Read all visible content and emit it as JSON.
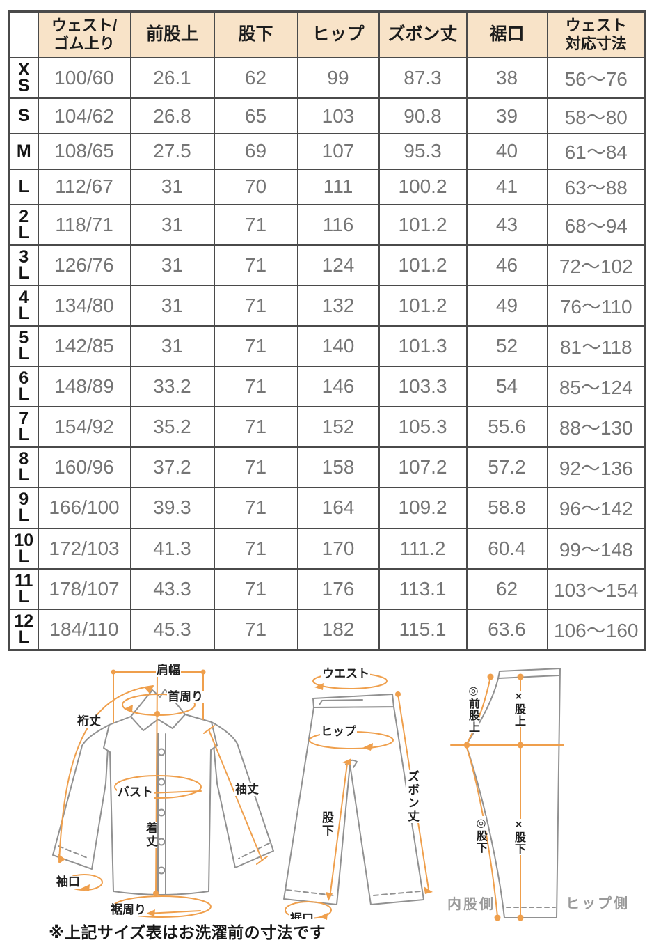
{
  "table": {
    "columns": [
      "ウェスト/\nゴム上り",
      "前股上",
      "股下",
      "ヒップ",
      "ズボン丈",
      "裾口",
      "ウェスト\n対応寸法"
    ],
    "row_keys": [
      "waist_elastic",
      "front_rise",
      "inseam",
      "hip",
      "pants_length",
      "hem_width",
      "waist_range"
    ],
    "rows": [
      {
        "size": "XS",
        "size_display": "X\nS",
        "waist_elastic": "100/60",
        "front_rise": "26.1",
        "inseam": "62",
        "hip": "99",
        "pants_length": "87.3",
        "hem_width": "38",
        "waist_range": "56〜76"
      },
      {
        "size": "S",
        "size_display": "S",
        "waist_elastic": "104/62",
        "front_rise": "26.8",
        "inseam": "65",
        "hip": "103",
        "pants_length": "90.8",
        "hem_width": "39",
        "waist_range": "58〜80"
      },
      {
        "size": "M",
        "size_display": "M",
        "waist_elastic": "108/65",
        "front_rise": "27.5",
        "inseam": "69",
        "hip": "107",
        "pants_length": "95.3",
        "hem_width": "40",
        "waist_range": "61〜84"
      },
      {
        "size": "L",
        "size_display": "L",
        "waist_elastic": "112/67",
        "front_rise": "31",
        "inseam": "70",
        "hip": "111",
        "pants_length": "100.2",
        "hem_width": "41",
        "waist_range": "63〜88"
      },
      {
        "size": "2L",
        "size_display": "2\nL",
        "waist_elastic": "118/71",
        "front_rise": "31",
        "inseam": "71",
        "hip": "116",
        "pants_length": "101.2",
        "hem_width": "43",
        "waist_range": "68〜94"
      },
      {
        "size": "3L",
        "size_display": "3\nL",
        "waist_elastic": "126/76",
        "front_rise": "31",
        "inseam": "71",
        "hip": "124",
        "pants_length": "101.2",
        "hem_width": "46",
        "waist_range": "72〜102"
      },
      {
        "size": "4L",
        "size_display": "4\nL",
        "waist_elastic": "134/80",
        "front_rise": "31",
        "inseam": "71",
        "hip": "132",
        "pants_length": "101.2",
        "hem_width": "49",
        "waist_range": "76〜110"
      },
      {
        "size": "5L",
        "size_display": "5\nL",
        "waist_elastic": "142/85",
        "front_rise": "31",
        "inseam": "71",
        "hip": "140",
        "pants_length": "101.3",
        "hem_width": "52",
        "waist_range": "81〜118"
      },
      {
        "size": "6L",
        "size_display": "6\nL",
        "waist_elastic": "148/89",
        "front_rise": "33.2",
        "inseam": "71",
        "hip": "146",
        "pants_length": "103.3",
        "hem_width": "54",
        "waist_range": "85〜124"
      },
      {
        "size": "7L",
        "size_display": "7\nL",
        "waist_elastic": "154/92",
        "front_rise": "35.2",
        "inseam": "71",
        "hip": "152",
        "pants_length": "105.3",
        "hem_width": "55.6",
        "waist_range": "88〜130"
      },
      {
        "size": "8L",
        "size_display": "8\nL",
        "waist_elastic": "160/96",
        "front_rise": "37.2",
        "inseam": "71",
        "hip": "158",
        "pants_length": "107.2",
        "hem_width": "57.2",
        "waist_range": "92〜136"
      },
      {
        "size": "9L",
        "size_display": "9\nL",
        "waist_elastic": "166/100",
        "front_rise": "39.3",
        "inseam": "71",
        "hip": "164",
        "pants_length": "109.2",
        "hem_width": "58.8",
        "waist_range": "96〜142"
      },
      {
        "size": "10L",
        "size_display": "10\nL",
        "waist_elastic": "172/103",
        "front_rise": "41.3",
        "inseam": "71",
        "hip": "170",
        "pants_length": "111.2",
        "hem_width": "60.4",
        "waist_range": "99〜148"
      },
      {
        "size": "11L",
        "size_display": "11\nL",
        "waist_elastic": "178/107",
        "front_rise": "43.3",
        "inseam": "71",
        "hip": "176",
        "pants_length": "113.1",
        "hem_width": "62",
        "waist_range": "103〜154"
      },
      {
        "size": "12L",
        "size_display": "12\nL",
        "waist_elastic": "184/110",
        "front_rise": "45.3",
        "inseam": "71",
        "hip": "182",
        "pants_length": "115.1",
        "hem_width": "63.6",
        "waist_range": "106〜160"
      }
    ]
  },
  "diagrams": {
    "shirt": {
      "shoulder_width": "肩幅",
      "neck": "首周り",
      "sleeve_reach": "裄丈",
      "bust": "バスト",
      "sleeve_length": "袖丈",
      "body_length": "着丈",
      "cuff": "袖口",
      "hem_round": "裾周り"
    },
    "pants_front": {
      "waist": "ウエスト",
      "hip": "ヒップ",
      "pants_length": "ズボン丈",
      "inseam": "股下",
      "hem": "裾口"
    },
    "pants_side": {
      "front_rise_ok": "◎前股上",
      "rise_ng": "×股上",
      "inseam_ok": "◎股下",
      "inseam_ng": "×股下",
      "inner_side": "内股側",
      "hip_side": "ヒップ側"
    }
  },
  "footer": {
    "note": "※上記サイズ表はお洗濯前の寸法です"
  },
  "colors": {
    "header_bg": "#f8e3c8",
    "table_border": "#4a4a4a",
    "data_text": "#757575",
    "accent_orange": "#ef9f4c",
    "garment_outline": "#919191",
    "muted_gray_text": "#9a9a9a"
  }
}
